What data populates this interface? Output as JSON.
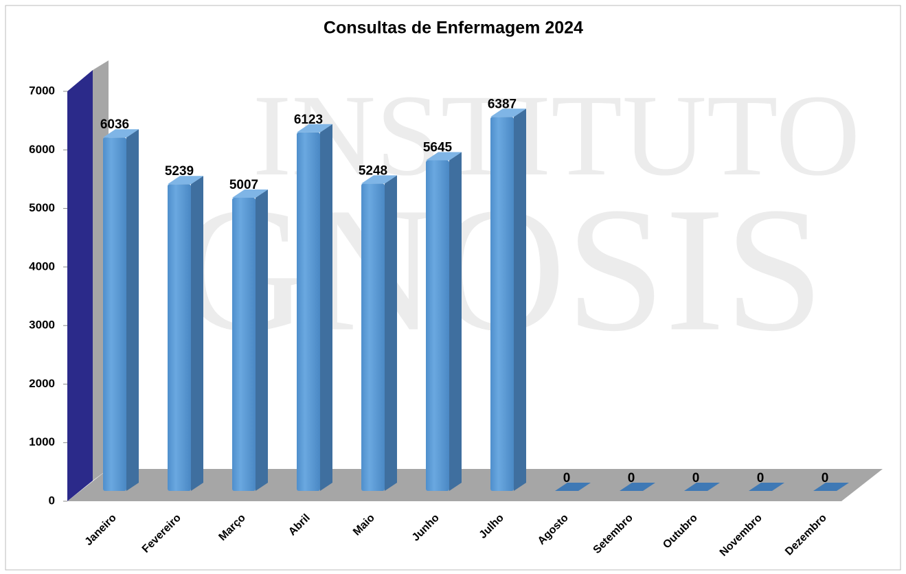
{
  "chart_data": {
    "type": "bar3d",
    "title": "Consultas de Enfermagem 2024",
    "watermark": [
      "INSTITUTO",
      "GNOSIS"
    ],
    "categories": [
      "Janeiro",
      "Fevereiro",
      "Março",
      "Abril",
      "Maio",
      "Junho",
      "Julho",
      "Agosto",
      "Setembro",
      "Outubro",
      "Novembro",
      "Dezembro"
    ],
    "values": [
      6036,
      5239,
      5007,
      6123,
      5248,
      5645,
      6387,
      0,
      0,
      0,
      0,
      0
    ],
    "color": "#5b9bd5",
    "ylim": [
      0,
      7000
    ],
    "yticks": [
      0,
      1000,
      2000,
      3000,
      4000,
      5000,
      6000,
      7000
    ]
  }
}
